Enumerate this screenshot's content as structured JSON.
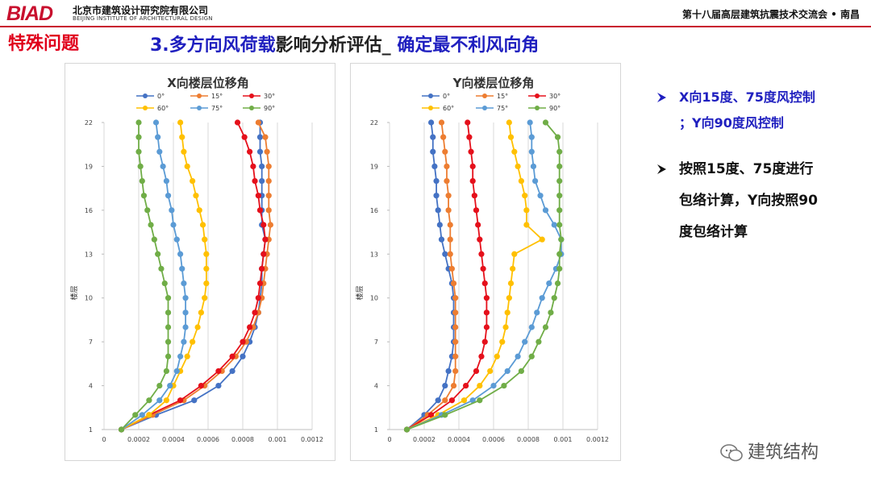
{
  "header": {
    "logo": "BIAD",
    "org_cn": "北京市建筑设计研究院有限公司",
    "org_en": "BEIJING INSTITUTE OF ARCHITECTURAL DESIGN",
    "conference": "第十八届高层建筑抗震技术交流会 • 南昌"
  },
  "section_title": "特殊问题",
  "slide_title": {
    "part1": "3.多方向风荷载",
    "part2": "影响分析评估_ ",
    "part3": "确定最不利风向角"
  },
  "bullets": {
    "b1_line1": "X向15度、75度风控制",
    "b1_line2": "；Y向90度风控制",
    "b2_line1": "按照15度、75度进行",
    "b2_line2": "包络计算，Y向按照90",
    "b2_line3": "度包络计算"
  },
  "watermark": "建筑结构",
  "colors": {
    "brand_red": "#c8102e",
    "title_blue": "#1f1fbf",
    "section_red": "#e0001b"
  },
  "chart_data": [
    {
      "type": "line",
      "title": "X向楼层位移角",
      "xlabel": "",
      "ylabel": "楼层",
      "xlim": [
        0,
        0.0012
      ],
      "ylim": [
        1,
        22
      ],
      "xticks": [
        "0",
        "0.0002",
        "0.0004",
        "0.0006",
        "0.0008",
        "0.001",
        "0.0012"
      ],
      "yticks": [
        "1",
        "4",
        "7",
        "10",
        "13",
        "16",
        "19",
        "22"
      ],
      "grid": "x-major",
      "legend_position": "top",
      "y": [
        1,
        2,
        3,
        4,
        5,
        6,
        7,
        8,
        9,
        10,
        11,
        12,
        13,
        14,
        15,
        16,
        17,
        18,
        19,
        20,
        21,
        22
      ],
      "series": [
        {
          "name": "0°",
          "color": "#4472c4",
          "values": [
            0.0001,
            0.0003,
            0.00052,
            0.00066,
            0.00074,
            0.0008,
            0.00084,
            0.00087,
            0.00089,
            0.0009,
            0.00091,
            0.00091,
            0.00092,
            0.00093,
            0.00091,
            0.00091,
            0.00091,
            0.00091,
            0.00091,
            0.0009,
            0.0009,
            0.0009
          ]
        },
        {
          "name": "15°",
          "color": "#ed7d31",
          "values": [
            0.0001,
            0.00028,
            0.00046,
            0.00058,
            0.00068,
            0.00076,
            0.00082,
            0.00086,
            0.00089,
            0.00091,
            0.00092,
            0.00093,
            0.00094,
            0.00095,
            0.00096,
            0.00095,
            0.00095,
            0.00095,
            0.00095,
            0.00094,
            0.00093,
            0.00089
          ]
        },
        {
          "name": "30°",
          "color": "#e5101b",
          "values": [
            0.0001,
            0.00026,
            0.00044,
            0.00056,
            0.00066,
            0.00074,
            0.0008,
            0.00084,
            0.00087,
            0.00089,
            0.0009,
            0.00091,
            0.00092,
            0.00093,
            0.00092,
            0.0009,
            0.00089,
            0.00087,
            0.00086,
            0.00084,
            0.00081,
            0.00077
          ]
        },
        {
          "name": "60°",
          "color": "#ffc000",
          "values": [
            0.0001,
            0.00026,
            0.00036,
            0.0004,
            0.00044,
            0.00048,
            0.00051,
            0.00054,
            0.00056,
            0.00058,
            0.00059,
            0.00059,
            0.00059,
            0.00058,
            0.00057,
            0.00055,
            0.00053,
            0.00051,
            0.00048,
            0.00046,
            0.00045,
            0.00044
          ]
        },
        {
          "name": "75°",
          "color": "#5b9bd5",
          "values": [
            0.0001,
            0.00022,
            0.00032,
            0.00038,
            0.00042,
            0.00044,
            0.00046,
            0.00047,
            0.00047,
            0.00047,
            0.00046,
            0.00045,
            0.00044,
            0.00042,
            0.0004,
            0.00039,
            0.00037,
            0.00036,
            0.00034,
            0.00032,
            0.00031,
            0.0003
          ]
        },
        {
          "name": "90°",
          "color": "#70ad47",
          "values": [
            0.0001,
            0.00018,
            0.00026,
            0.00032,
            0.00036,
            0.00037,
            0.00037,
            0.00037,
            0.00037,
            0.00037,
            0.00035,
            0.00033,
            0.00031,
            0.00029,
            0.00027,
            0.00025,
            0.00023,
            0.00022,
            0.00021,
            0.0002,
            0.0002,
            0.0002
          ]
        }
      ]
    },
    {
      "type": "line",
      "title": "Y向楼层位移角",
      "xlabel": "",
      "ylabel": "楼层",
      "xlim": [
        0,
        0.0012
      ],
      "ylim": [
        1,
        22
      ],
      "xticks": [
        "0",
        "0.0002",
        "0.0004",
        "0.0006",
        "0.0008",
        "0.001",
        "0.0012"
      ],
      "yticks": [
        "1",
        "4",
        "7",
        "10",
        "13",
        "16",
        "19",
        "22"
      ],
      "grid": "x-major",
      "legend_position": "top",
      "y": [
        1,
        2,
        3,
        4,
        5,
        6,
        7,
        8,
        9,
        10,
        11,
        12,
        13,
        14,
        15,
        16,
        17,
        18,
        19,
        20,
        21,
        22
      ],
      "series": [
        {
          "name": "0°",
          "color": "#4472c4",
          "values": [
            0.0001,
            0.0002,
            0.00028,
            0.00032,
            0.00034,
            0.00036,
            0.00037,
            0.00037,
            0.00037,
            0.00037,
            0.00036,
            0.00034,
            0.00032,
            0.0003,
            0.00029,
            0.00028,
            0.00027,
            0.00027,
            0.00026,
            0.00025,
            0.00025,
            0.00024
          ]
        },
        {
          "name": "15°",
          "color": "#ed7d31",
          "values": [
            0.0001,
            0.00022,
            0.00032,
            0.00037,
            0.00038,
            0.00038,
            0.00038,
            0.00038,
            0.00038,
            0.00038,
            0.00037,
            0.00036,
            0.00035,
            0.00035,
            0.00035,
            0.00034,
            0.00034,
            0.00033,
            0.00033,
            0.00032,
            0.00031,
            0.0003
          ]
        },
        {
          "name": "30°",
          "color": "#e5101b",
          "values": [
            0.0001,
            0.00024,
            0.00036,
            0.00044,
            0.0005,
            0.00053,
            0.00055,
            0.00056,
            0.00056,
            0.00056,
            0.00055,
            0.00054,
            0.00053,
            0.00052,
            0.00051,
            0.0005,
            0.00049,
            0.00048,
            0.00048,
            0.00047,
            0.00046,
            0.00045
          ]
        },
        {
          "name": "60°",
          "color": "#ffc000",
          "values": [
            0.0001,
            0.00028,
            0.00043,
            0.00052,
            0.00058,
            0.00062,
            0.00065,
            0.00067,
            0.00068,
            0.00069,
            0.0007,
            0.00071,
            0.00072,
            0.00088,
            0.00079,
            0.00079,
            0.00078,
            0.00076,
            0.00074,
            0.00072,
            0.0007,
            0.00069
          ]
        },
        {
          "name": "75°",
          "color": "#5b9bd5",
          "values": [
            0.0001,
            0.0003,
            0.00048,
            0.0006,
            0.00068,
            0.00074,
            0.00078,
            0.00082,
            0.00085,
            0.00088,
            0.00092,
            0.00096,
            0.00099,
            0.00099,
            0.00095,
            0.0009,
            0.00087,
            0.00084,
            0.00083,
            0.00082,
            0.00082,
            0.00081
          ]
        },
        {
          "name": "90°",
          "color": "#70ad47",
          "values": [
            0.0001,
            0.00032,
            0.00052,
            0.00066,
            0.00076,
            0.00082,
            0.00086,
            0.0009,
            0.00093,
            0.00095,
            0.00097,
            0.00098,
            0.00098,
            0.00099,
            0.00098,
            0.00098,
            0.00098,
            0.00098,
            0.00098,
            0.00098,
            0.00097,
            0.0009
          ]
        }
      ]
    }
  ]
}
